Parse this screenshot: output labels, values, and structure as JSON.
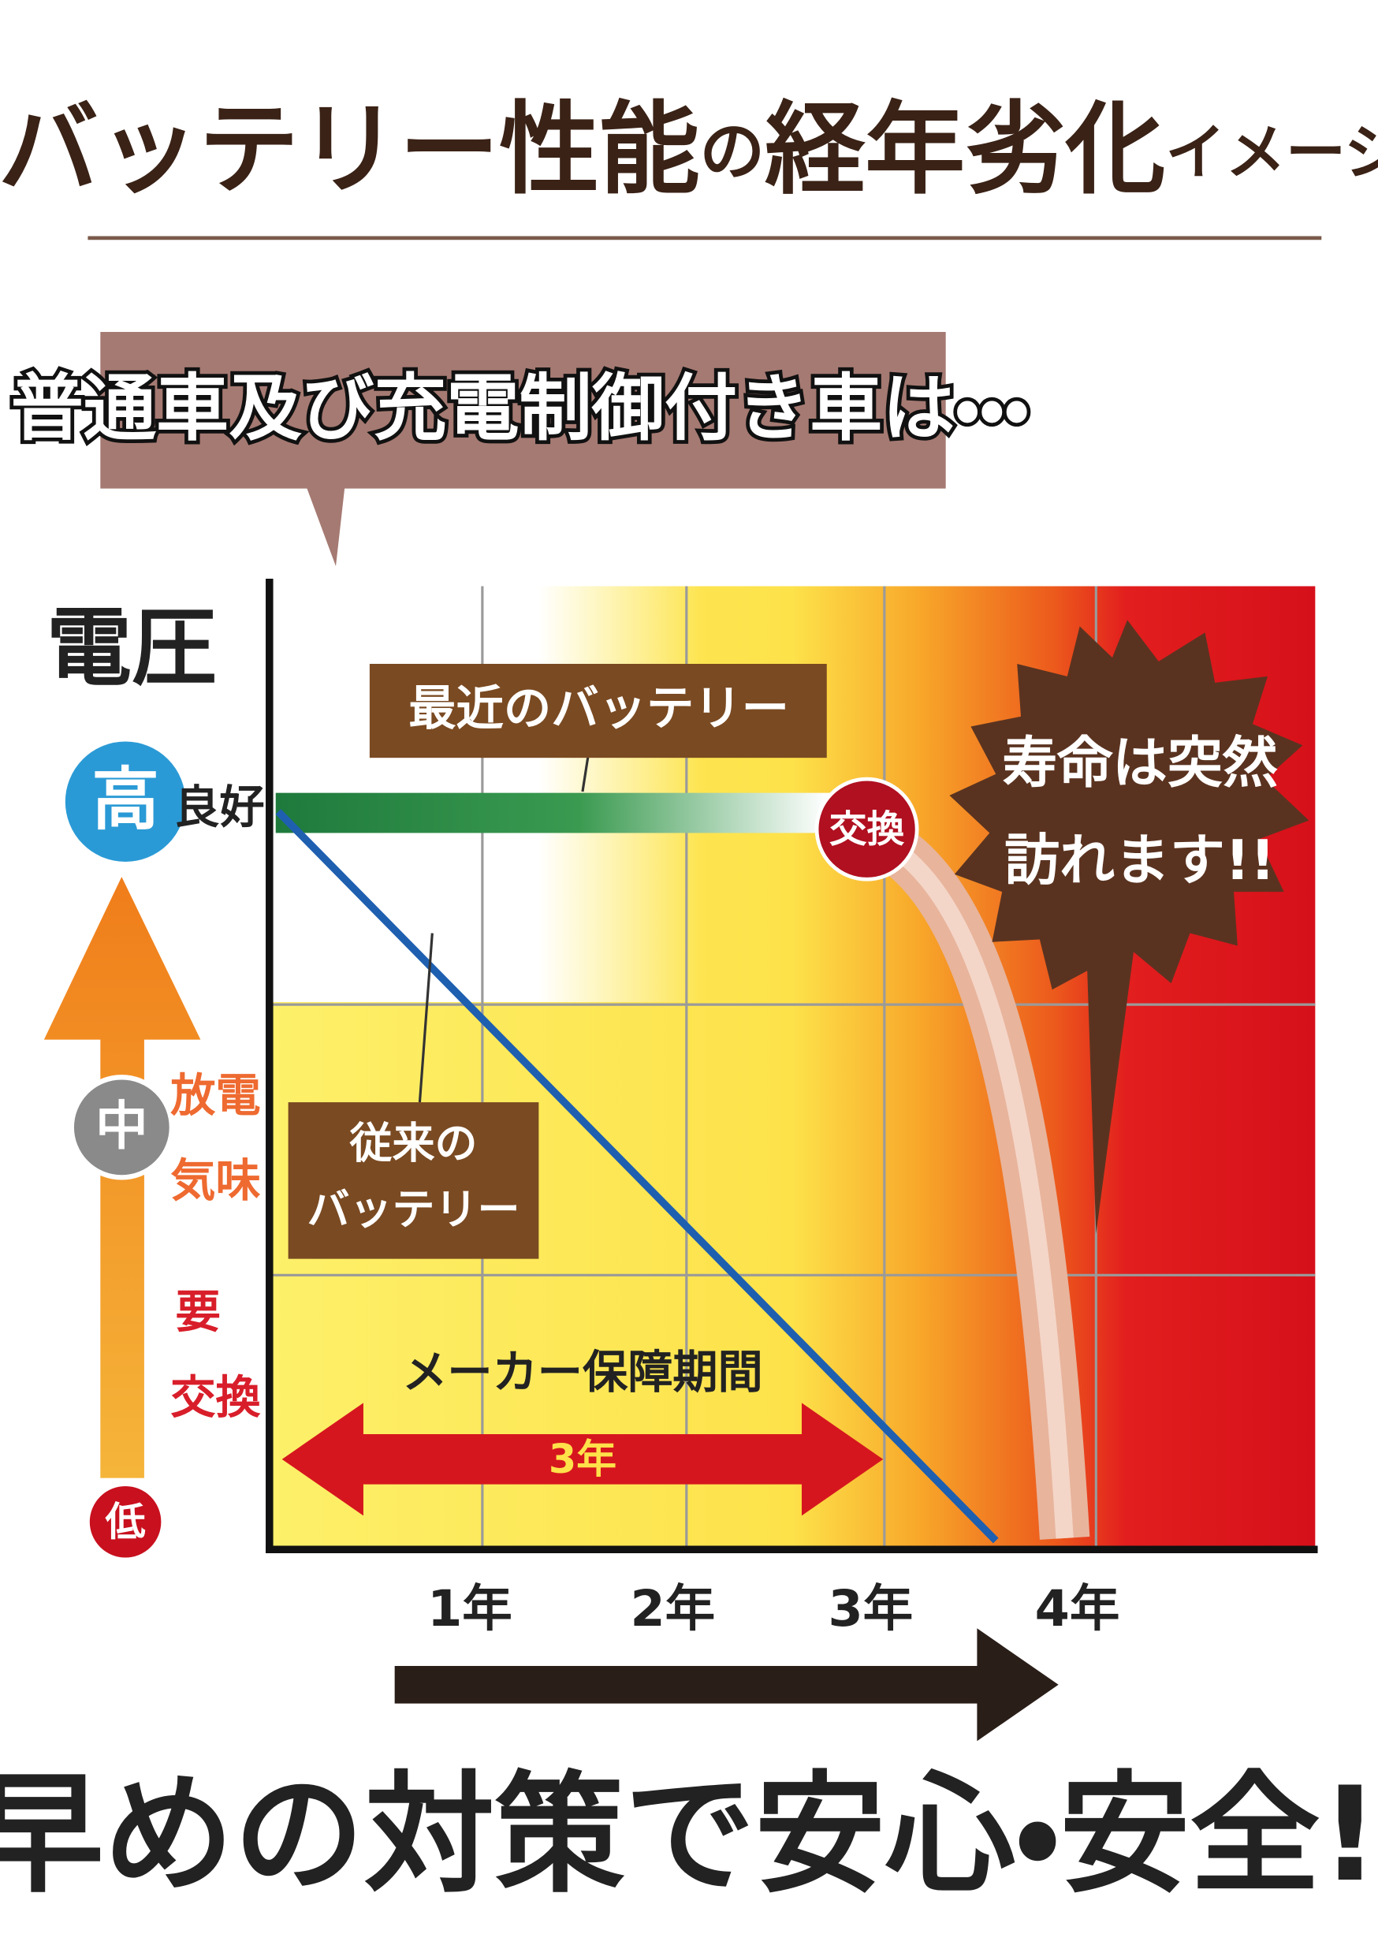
{
  "header": {
    "title_parts": [
      "バッテリー性能",
      "の",
      "経年劣化",
      "イメージ"
    ]
  },
  "callout": "普通車及び充電制御付き車は・・・",
  "y_axis": {
    "label": "電圧",
    "high": "高",
    "good": "良好",
    "mid": "中",
    "mid_note": [
      "放電",
      "気味"
    ],
    "low": "低",
    "low_note": [
      "要",
      "交換"
    ]
  },
  "labels": {
    "recent_battery": "最近のバッテリー",
    "old_battery": [
      "従来の",
      "バッテリー"
    ],
    "replace": "交換",
    "burst": [
      "寿命は突然",
      "訪れます!!"
    ],
    "warranty": "メーカー保障期間",
    "warranty_years": "3年"
  },
  "x_axis": {
    "labels": [
      "1年",
      "2年",
      "3年",
      "4年"
    ]
  },
  "footer": "早めの対策で安心・安全!"
}
